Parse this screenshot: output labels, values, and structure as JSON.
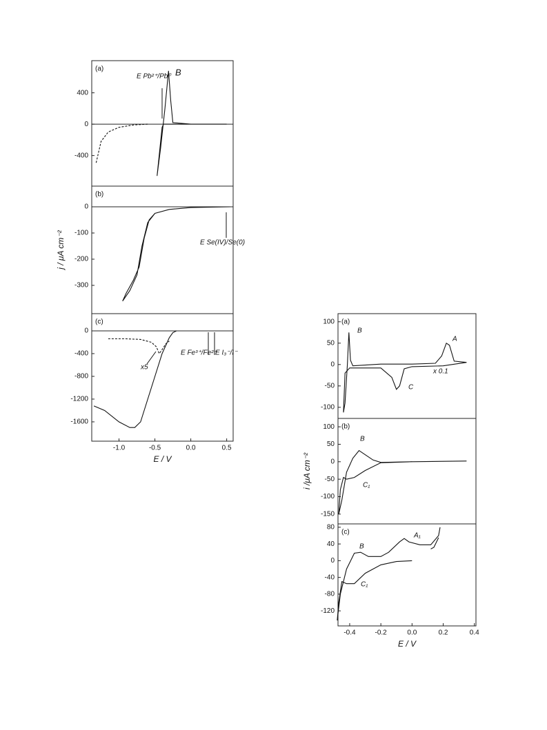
{
  "chart_data": [
    {
      "type": "line",
      "label": "(a)",
      "xlim": [
        -1.38,
        0.59
      ],
      "ylim": [
        -790,
        810
      ],
      "yticks": [
        400,
        0,
        -400
      ],
      "zero_line": true,
      "annotations": [
        "B",
        "E Pb²⁺/Pb⁰"
      ],
      "series": [
        {
          "color": "#111",
          "dash": false,
          "x": [
            0.5,
            -0.38,
            -0.4,
            -0.47,
            -0.42,
            -0.36,
            -0.31,
            -0.28,
            -0.25,
            0.0,
            0.5
          ],
          "values": [
            0,
            0,
            -40,
            -660,
            -300,
            200,
            680,
            300,
            20,
            0,
            0
          ]
        },
        {
          "color": "#111",
          "dash": true,
          "x": [
            -0.6,
            -0.8,
            -1.0,
            -1.15,
            -1.25,
            -1.32
          ],
          "values": [
            0,
            -10,
            -40,
            -100,
            -220,
            -500
          ]
        }
      ]
    },
    {
      "type": "line",
      "label": "(b)",
      "xlim": [
        -1.38,
        0.59
      ],
      "ylim": [
        -408,
        79
      ],
      "yticks": [
        0,
        -100,
        -200,
        -300
      ],
      "zero_line": true,
      "ylabel": "j / μA cm⁻²",
      "annotations": [
        "E Se(IV)/Se(0)"
      ],
      "series": [
        {
          "color": "#111",
          "dash": false,
          "x": [
            0.55,
            0.0,
            -0.3,
            -0.5,
            -0.58,
            -0.65,
            -0.72,
            -0.8,
            -0.9,
            -0.95,
            -0.85,
            -0.75,
            -0.68,
            -0.6,
            -0.5,
            -0.3,
            0.0,
            0.55
          ],
          "values": [
            0,
            -3,
            -10,
            -25,
            -50,
            -120,
            -230,
            -280,
            -330,
            -360,
            -320,
            -260,
            -150,
            -60,
            -25,
            -10,
            -3,
            0
          ]
        }
      ]
    },
    {
      "type": "line",
      "label": "(c)",
      "xlim": [
        -1.38,
        0.59
      ],
      "ylim": [
        -1940,
        303
      ],
      "yticks": [
        0,
        -400,
        -800,
        -1200,
        -1600
      ],
      "zero_line": true,
      "xticks": [
        {
          "value": -1,
          "label": "-1.0"
        },
        -0.5,
        {
          "value": 0,
          "label": "0.0"
        },
        0.5
      ],
      "xlabel": "E / V",
      "annotations": [
        "x5",
        "E Fe³⁺/Fe²⁺",
        "E I₃⁻/I⁻"
      ],
      "series": [
        {
          "color": "#111",
          "dash": false,
          "x": [
            -1.35,
            -1.2,
            -1.0,
            -0.85,
            -0.78,
            -0.7,
            -0.6,
            -0.5,
            -0.4,
            -0.3,
            -0.25,
            -0.2
          ],
          "values": [
            -1320,
            -1400,
            -1600,
            -1700,
            -1700,
            -1600,
            -1200,
            -800,
            -400,
            -120,
            -30,
            0
          ]
        },
        {
          "color": "#111",
          "dash": true,
          "x": [
            -1.15,
            -0.9,
            -0.7,
            -0.55,
            -0.48,
            -0.44,
            -0.4,
            -0.35,
            -0.3
          ],
          "values": [
            -140,
            -140,
            -150,
            -200,
            -280,
            -400,
            -330,
            -230,
            -180
          ]
        }
      ]
    },
    {
      "type": "line",
      "label": "(a)",
      "xlim": [
        -0.475,
        0.41
      ],
      "ylim": [
        -126,
        119
      ],
      "yticks": [
        100,
        50,
        0,
        -50,
        -100
      ],
      "zero_line": false,
      "annotations": [
        "B",
        "A",
        "C",
        "x 0.1"
      ],
      "series": [
        {
          "color": "#111",
          "dash": false,
          "x": [
            0.35,
            0.2,
            0,
            -0.05,
            -0.08,
            -0.1,
            -0.13,
            -0.2,
            -0.4,
            -0.43,
            -0.44,
            -0.43,
            -0.415,
            -0.405,
            -0.395,
            -0.38,
            -0.2,
            0,
            0.15,
            0.19,
            0.22,
            0.24,
            0.27,
            0.35
          ],
          "values": [
            5,
            -3,
            -5,
            -10,
            -50,
            -58,
            -30,
            -8,
            -8,
            -20,
            -112,
            -90,
            0,
            75,
            10,
            -3,
            1,
            1,
            3,
            20,
            50,
            45,
            8,
            5
          ]
        }
      ]
    },
    {
      "type": "line",
      "label": "(b)",
      "xlim": [
        -0.475,
        0.41
      ],
      "ylim": [
        -178,
        124
      ],
      "yticks": [
        100,
        50,
        0,
        -50,
        -100,
        -150
      ],
      "zero_line": false,
      "ylabel": "i /μA cm⁻²",
      "annotations": [
        "B",
        "C₁"
      ],
      "series": [
        {
          "color": "#111",
          "dash": false,
          "x": [
            0.35,
            0.0,
            -0.2,
            -0.3,
            -0.37,
            -0.42,
            -0.44,
            -0.46,
            -0.47,
            -0.45,
            -0.42,
            -0.38,
            -0.34,
            -0.3,
            -0.25,
            -0.2,
            0
          ],
          "values": [
            2,
            0,
            -3,
            -25,
            -45,
            -50,
            -45,
            -80,
            -150,
            -110,
            -30,
            10,
            32,
            20,
            5,
            -2,
            0
          ]
        }
      ]
    },
    {
      "type": "line",
      "label": "(c)",
      "xlim": [
        -0.475,
        0.41
      ],
      "ylim": [
        -156,
        88
      ],
      "yticks": [
        80,
        40,
        0,
        -40,
        -80,
        -120
      ],
      "zero_line": false,
      "xticks": [
        -0.4,
        -0.2,
        {
          "value": 0,
          "label": "0.0"
        },
        0.2,
        0.4
      ],
      "xlabel": "E / V",
      "annotations": [
        "A₁",
        "B",
        "C₁"
      ],
      "series": [
        {
          "color": "#111",
          "dash": false,
          "x": [
            0,
            -0.1,
            -0.2,
            -0.3,
            -0.37,
            -0.42,
            -0.45,
            -0.47,
            -0.48,
            -0.46,
            -0.42,
            -0.37,
            -0.33,
            -0.28,
            -0.2,
            -0.15,
            -0.08,
            -0.05,
            -0.02,
            0.05,
            0.12,
            0.17,
            0.18,
            null,
            0.17,
            0.14,
            0.12
          ],
          "values": [
            0,
            -2,
            -10,
            -30,
            -55,
            -55,
            -50,
            -100,
            -143,
            -80,
            -20,
            18,
            20,
            10,
            10,
            20,
            45,
            53,
            45,
            38,
            38,
            60,
            80,
            null,
            55,
            32,
            28
          ]
        }
      ]
    }
  ]
}
